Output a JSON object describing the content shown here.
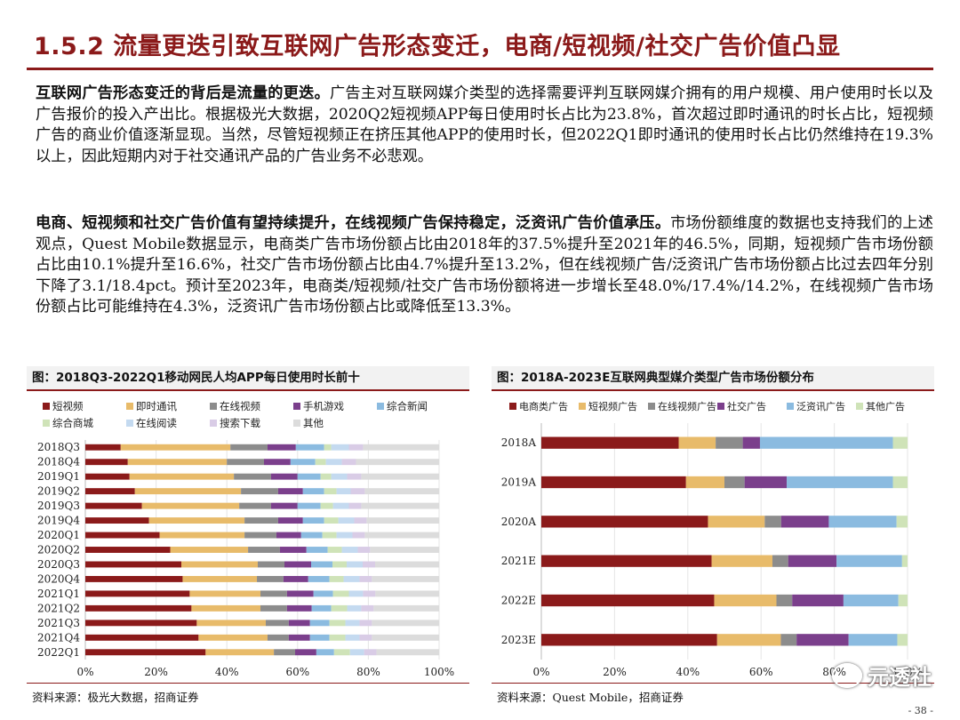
{
  "title": "1.5.2 流量更迭引致互联网广告形态变迁，电商/短视频/社交广告价值凸显",
  "para1": {
    "lead": "互联网广告形态变迁的背后是流量的更迭。",
    "body": "广告主对互联网媒介类型的选择需要评判互联网媒介拥有的用户规模、用户使用时长以及广告报价的投入产出比。根据极光大数据，2020Q2短视频APP每日使用时长占比为23.8%，首次超过即时通讯的时长占比，短视频广告的商业价值逐渐显现。当然，尽管短视频正在挤压其他APP的使用时长，但2022Q1即时通讯的使用时长占比仍然维持在19.3%以上，因此短期内对于社交通讯产品的广告业务不必悲观。"
  },
  "para2": {
    "lead": "电商、短视频和社交广告价值有望持续提升，在线视频广告保持稳定，泛资讯广告价值承压。",
    "body": "市场份额维度的数据也支持我们的上述观点，Quest Mobile数据显示，电商类广告市场份额占比由2018年的37.5%提升至2021年的46.5%，同期，短视频广告市场份额占比由10.1%提升至16.6%，社交广告市场份额占比由4.7%提升至13.2%，但在线视频广告/泛资讯广告市场份额占比过去四年分别下降了3.1/18.4pct。预计至2023年，电商类/短视频/社交广告市场份额将进一步增长至48.0%/17.4%/14.2%，在线视频广告市场份额占比可能维持在4.3%，泛资讯广告市场份额占比或降低至13.3%。"
  },
  "left_panel": {
    "title": "图：2018Q3-2022Q1移动网民人均APP每日使用时长前十",
    "source": "资料来源：极光大数据，招商证券"
  },
  "right_panel": {
    "title": "图：2018A-2023E互联网典型媒介类型广告市场份额分布",
    "source": "资料来源：Quest Mobile，招商证券"
  },
  "page_number": "- 38 -",
  "watermark": "元透社",
  "chart_data": [
    {
      "type": "bar",
      "orientation": "horizontal-stacked-100",
      "title": "图：2018Q3-2022Q1移动网民人均APP每日使用时长前十",
      "categories": [
        "2018Q3",
        "2018Q4",
        "2019Q1",
        "2019Q2",
        "2019Q3",
        "2019Q4",
        "2020Q1",
        "2020Q2",
        "2020Q3",
        "2020Q4",
        "2021Q1",
        "2021Q2",
        "2021Q3",
        "2021Q4",
        "2022Q1"
      ],
      "xlim": [
        0,
        100
      ],
      "xticks": [
        "0%",
        "20%",
        "40%",
        "60%",
        "80%",
        "100%"
      ],
      "legend_position": "top",
      "series": [
        {
          "name": "短视频",
          "color": "#8b1a1a",
          "values": [
            10,
            12,
            12.5,
            14,
            16,
            18,
            21,
            24,
            27,
            27.5,
            29.5,
            30,
            31.5,
            32,
            34
          ]
        },
        {
          "name": "即时通讯",
          "color": "#e8bb6a",
          "values": [
            31,
            28,
            29.5,
            30,
            27.5,
            27,
            24,
            22,
            21.5,
            21,
            20,
            19.5,
            19.5,
            19.5,
            19.3
          ]
        },
        {
          "name": "在线视频",
          "color": "#8c8c8c",
          "values": [
            10.5,
            10.5,
            10.5,
            10.5,
            9,
            9.5,
            9,
            9,
            7.5,
            7.5,
            7.5,
            7.5,
            6.5,
            6,
            6
          ]
        },
        {
          "name": "手机游戏",
          "color": "#7b3f8c",
          "values": [
            8,
            7.5,
            7.5,
            7,
            7.5,
            7,
            7,
            7.5,
            7.5,
            7,
            7.5,
            7,
            6,
            6,
            6
          ]
        },
        {
          "name": "综合新闻",
          "color": "#8bbbe0",
          "values": [
            8,
            7,
            6.5,
            6,
            6.5,
            6,
            6,
            6,
            6,
            6,
            5.5,
            5.5,
            5.5,
            5.5,
            5
          ]
        },
        {
          "name": "综合商城",
          "color": "#cfe3b8",
          "values": [
            2,
            3,
            3,
            3.5,
            3.5,
            4,
            4,
            4,
            4,
            4,
            4.5,
            4.5,
            4.5,
            4.5,
            4.5
          ]
        },
        {
          "name": "在线阅读",
          "color": "#c4daf0",
          "values": [
            5,
            4.5,
            4.5,
            4,
            4.5,
            4.5,
            4.5,
            4.5,
            4.5,
            4.5,
            4,
            4,
            4,
            4,
            4
          ]
        },
        {
          "name": "搜索下载",
          "color": "#d9cce6",
          "values": [
            4,
            4,
            4,
            4,
            3.5,
            3.5,
            3.5,
            3.5,
            3.5,
            3.5,
            3.5,
            3.5,
            3.5,
            3.5,
            3.5
          ]
        },
        {
          "name": "其他",
          "color": "#dcdcdc",
          "values": [
            21.5,
            23.5,
            22,
            21,
            22,
            20.5,
            21,
            19.5,
            18,
            19,
            18,
            18.5,
            19,
            19,
            17.7
          ]
        }
      ]
    },
    {
      "type": "bar",
      "orientation": "horizontal-stacked-100",
      "title": "图：2018A-2023E互联网典型媒介类型广告市场份额分布",
      "categories": [
        "2018A",
        "2019A",
        "2020A",
        "2021E",
        "2022E",
        "2023E"
      ],
      "xlim": [
        0,
        100
      ],
      "xticks": [
        "0%",
        "20%",
        "40%",
        "60%",
        "80%",
        "100%"
      ],
      "legend_position": "top",
      "series": [
        {
          "name": "电商类广告",
          "color": "#8b1a1a",
          "values": [
            37.5,
            39.5,
            45.5,
            46.5,
            47.2,
            48.0
          ]
        },
        {
          "name": "短视频广告",
          "color": "#e8bb6a",
          "values": [
            10.1,
            10.5,
            15.5,
            16.6,
            17.0,
            17.4
          ]
        },
        {
          "name": "在线视频广告",
          "color": "#8c8c8c",
          "values": [
            7.4,
            5.5,
            4.5,
            4.3,
            4.3,
            4.3
          ]
        },
        {
          "name": "社交广告",
          "color": "#7b3f8c",
          "values": [
            4.7,
            11.5,
            13.0,
            13.2,
            14.0,
            14.2
          ]
        },
        {
          "name": "泛资讯广告",
          "color": "#8bbbe0",
          "values": [
            36.3,
            29.0,
            18.5,
            17.9,
            15.0,
            13.3
          ]
        },
        {
          "name": "其他广告",
          "color": "#cfe3b8",
          "values": [
            4.0,
            4.0,
            3.0,
            1.5,
            2.5,
            2.8
          ]
        }
      ]
    }
  ]
}
